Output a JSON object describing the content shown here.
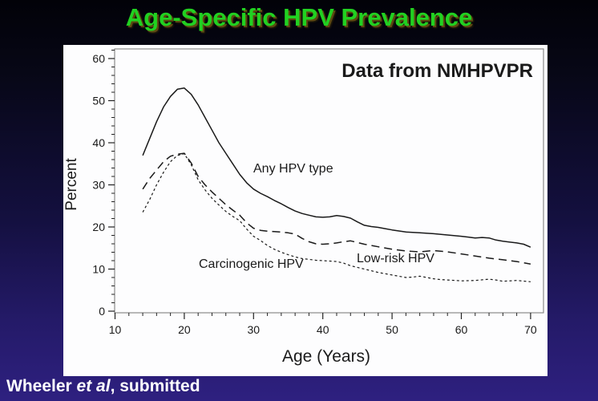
{
  "slide": {
    "title": "Age-Specific HPV Prevalence",
    "citation": {
      "author": "Wheeler ",
      "etal": "et al",
      "suffix": ", submitted"
    }
  },
  "chart": {
    "annotation": "Data from NMHPVPR",
    "annotation_color": "#fb1d1d",
    "title_color": "#21d121",
    "curve_color": "#1a1a1a",
    "frame_color": "#8a8a8a"
  },
  "chart_data": {
    "type": "line",
    "title": "Age-Specific HPV Prevalence",
    "xlabel": "Age (Years)",
    "ylabel": "Percent",
    "xlim": [
      10,
      72
    ],
    "ylim": [
      0,
      62
    ],
    "x_ticks": [
      10,
      20,
      30,
      40,
      50,
      60,
      70
    ],
    "y_ticks": [
      0,
      10,
      20,
      30,
      40,
      50,
      60
    ],
    "minor_tick_step": 2,
    "grid": false,
    "legend_position": "labels drawn next to curves",
    "annotation": "Data from NMHPVPR",
    "series": [
      {
        "name": "Any HPV type",
        "line_style": "solid",
        "points": [
          [
            14,
            37
          ],
          [
            15,
            41
          ],
          [
            16,
            45
          ],
          [
            17,
            48.5
          ],
          [
            18,
            51
          ],
          [
            19,
            52.7
          ],
          [
            20,
            53
          ],
          [
            21,
            51.5
          ],
          [
            22,
            49
          ],
          [
            23,
            46
          ],
          [
            24,
            43
          ],
          [
            25,
            40
          ],
          [
            26,
            37.5
          ],
          [
            27,
            35
          ],
          [
            28,
            32.5
          ],
          [
            29,
            30.5
          ],
          [
            30,
            29
          ],
          [
            31,
            28
          ],
          [
            32,
            27.2
          ],
          [
            33,
            26.3
          ],
          [
            34,
            25.5
          ],
          [
            35,
            24.6
          ],
          [
            36,
            23.8
          ],
          [
            37,
            23.2
          ],
          [
            38,
            22.8
          ],
          [
            39,
            22.4
          ],
          [
            40,
            22.3
          ],
          [
            41,
            22.4
          ],
          [
            42,
            22.7
          ],
          [
            43,
            22.5
          ],
          [
            44,
            22.1
          ],
          [
            45,
            21.2
          ],
          [
            46,
            20.4
          ],
          [
            47,
            20.1
          ],
          [
            48,
            19.9
          ],
          [
            49,
            19.6
          ],
          [
            50,
            19.3
          ],
          [
            52,
            18.8
          ],
          [
            54,
            18.6
          ],
          [
            56,
            18.4
          ],
          [
            58,
            18.1
          ],
          [
            60,
            17.8
          ],
          [
            61,
            17.6
          ],
          [
            62,
            17.4
          ],
          [
            63,
            17.5
          ],
          [
            64,
            17.4
          ],
          [
            65,
            16.9
          ],
          [
            66,
            16.6
          ],
          [
            68,
            16.2
          ],
          [
            69,
            15.9
          ],
          [
            70,
            15.2
          ]
        ]
      },
      {
        "name": "Low-risk HPV",
        "line_style": "long-dash",
        "points": [
          [
            14,
            29
          ],
          [
            15,
            31.5
          ],
          [
            16,
            33.5
          ],
          [
            17,
            35.5
          ],
          [
            18,
            36.8
          ],
          [
            19,
            37.3
          ],
          [
            20,
            37.5
          ],
          [
            21,
            35.2
          ],
          [
            22,
            32
          ],
          [
            23,
            30
          ],
          [
            24,
            28.3
          ],
          [
            25,
            26.8
          ],
          [
            26,
            25.3
          ],
          [
            27,
            24
          ],
          [
            28,
            22.8
          ],
          [
            29,
            21
          ],
          [
            30,
            19.7
          ],
          [
            31,
            19.2
          ],
          [
            32,
            19
          ],
          [
            33,
            18.9
          ],
          [
            34,
            18.8
          ],
          [
            35,
            18.6
          ],
          [
            36,
            18.3
          ],
          [
            37,
            17.3
          ],
          [
            38,
            16.5
          ],
          [
            39,
            16
          ],
          [
            40,
            15.9
          ],
          [
            41,
            16
          ],
          [
            42,
            16.2
          ],
          [
            43,
            16.5
          ],
          [
            44,
            16.7
          ],
          [
            45,
            16.3
          ],
          [
            46,
            15.9
          ],
          [
            47,
            15.6
          ],
          [
            48,
            15.3
          ],
          [
            50,
            14.7
          ],
          [
            52,
            14.3
          ],
          [
            54,
            14.1
          ],
          [
            56,
            14.4
          ],
          [
            58,
            14.1
          ],
          [
            60,
            13.6
          ],
          [
            62,
            13.1
          ],
          [
            64,
            12.6
          ],
          [
            66,
            12.2
          ],
          [
            68,
            11.8
          ],
          [
            70,
            11.2
          ]
        ]
      },
      {
        "name": "Carcinogenic HPV",
        "line_style": "dotted",
        "points": [
          [
            14,
            23.5
          ],
          [
            15,
            26.5
          ],
          [
            16,
            30
          ],
          [
            17,
            33
          ],
          [
            18,
            35.5
          ],
          [
            19,
            37
          ],
          [
            20,
            37.4
          ],
          [
            21,
            34.8
          ],
          [
            22,
            31.2
          ],
          [
            23,
            28.8
          ],
          [
            24,
            26.8
          ],
          [
            25,
            25.2
          ],
          [
            26,
            23.7
          ],
          [
            27,
            22.5
          ],
          [
            28,
            21.5
          ],
          [
            29,
            19.5
          ],
          [
            30,
            17.8
          ],
          [
            31,
            16.8
          ],
          [
            32,
            15.6
          ],
          [
            33,
            14.7
          ],
          [
            34,
            14
          ],
          [
            35,
            13.4
          ],
          [
            36,
            12.9
          ],
          [
            37,
            12.5
          ],
          [
            38,
            12.3
          ],
          [
            39,
            12.1
          ],
          [
            40,
            12
          ],
          [
            41,
            11.9
          ],
          [
            42,
            11.8
          ],
          [
            43,
            11.4
          ],
          [
            44,
            10.8
          ],
          [
            45,
            10.4
          ],
          [
            46,
            10
          ],
          [
            47,
            9.6
          ],
          [
            48,
            9.2
          ],
          [
            49,
            8.9
          ],
          [
            50,
            8.6
          ],
          [
            51,
            8.3
          ],
          [
            52,
            8
          ],
          [
            53,
            8.1
          ],
          [
            54,
            8.3
          ],
          [
            55,
            8
          ],
          [
            56,
            7.7
          ],
          [
            57,
            7.5
          ],
          [
            58,
            7.4
          ],
          [
            60,
            7.2
          ],
          [
            62,
            7.3
          ],
          [
            64,
            7.6
          ],
          [
            65,
            7.4
          ],
          [
            66,
            7.1
          ],
          [
            68,
            7.3
          ],
          [
            70,
            7
          ]
        ]
      }
    ]
  }
}
